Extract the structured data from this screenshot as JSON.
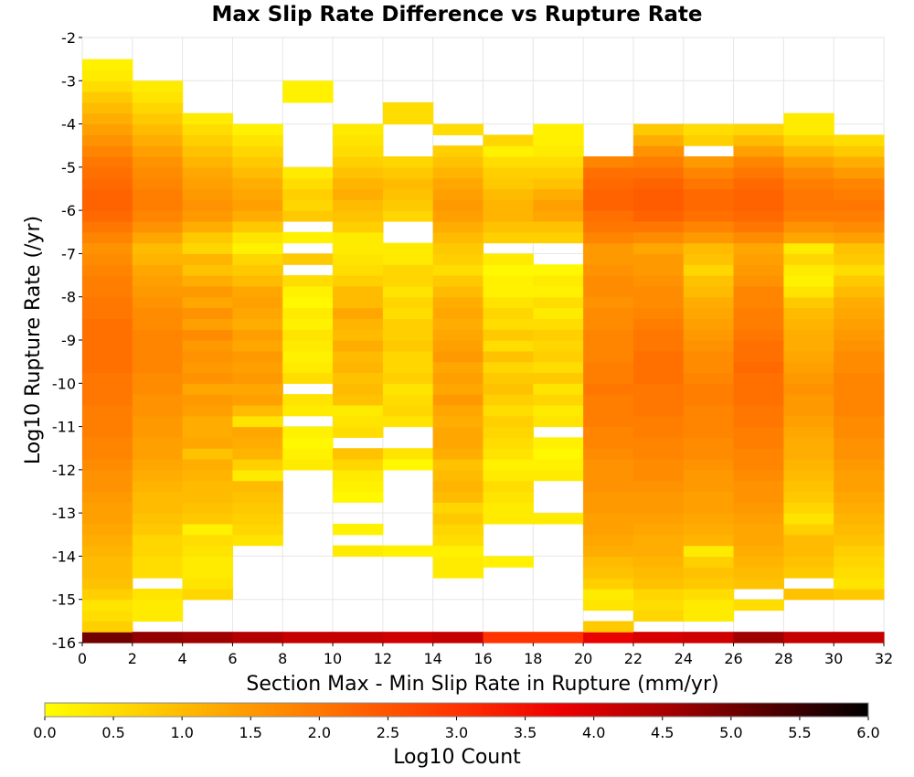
{
  "chart_data": {
    "type": "heatmap",
    "title": "Max Slip Rate Difference vs Rupture Rate",
    "xlabel": "Section Max - Min Slip Rate in Rupture (mm/yr)",
    "ylabel": "Log10 Rupture Rate (/yr)",
    "xlim": [
      0,
      32
    ],
    "ylim": [
      -16,
      -2
    ],
    "x_ticks": [
      "0",
      "2",
      "4",
      "6",
      "8",
      "10",
      "12",
      "14",
      "16",
      "18",
      "20",
      "22",
      "24",
      "26",
      "28",
      "30",
      "32"
    ],
    "y_ticks": [
      "-2",
      "-3",
      "-4",
      "-5",
      "-6",
      "-7",
      "-8",
      "-9",
      "-10",
      "-11",
      "-12",
      "-13",
      "-14",
      "-15",
      "-16"
    ],
    "x_bin_width": 2,
    "y_bin_height": 0.25,
    "y_bin_starts": [
      -16.0,
      -15.75,
      -15.5,
      -15.25,
      -15.0,
      -14.75,
      -14.5,
      -14.25,
      -14.0,
      -13.75,
      -13.5,
      -13.25,
      -13.0,
      -12.75,
      -12.5,
      -12.25,
      -12.0,
      -11.75,
      -11.5,
      -11.25,
      -11.0,
      -10.75,
      -10.5,
      -10.25,
      -10.0,
      -9.75,
      -9.5,
      -9.25,
      -9.0,
      -8.75,
      -8.5,
      -8.25,
      -8.0,
      -7.75,
      -7.5,
      -7.25,
      -7.0,
      -6.75,
      -6.5,
      -6.25,
      -6.0,
      -5.75,
      -5.5,
      -5.25,
      -5.0,
      -4.75,
      -4.5,
      -4.25,
      -4.0,
      -3.75,
      -3.5,
      -3.25,
      -3.0,
      -2.75
    ],
    "grid": true,
    "colorbar": {
      "label": "Log10 Count",
      "range": [
        0,
        6
      ],
      "ticks": [
        "0.0",
        "0.5",
        "1.0",
        "1.5",
        "2.0",
        "2.5",
        "3.0",
        "3.5",
        "4.0",
        "4.5",
        "5.0",
        "5.5",
        "6.0"
      ],
      "colormap": [
        "#ffff00",
        "#ffcc00",
        "#ff9900",
        "#ff6600",
        "#ff3300",
        "#ee0000",
        "#aa0000",
        "#550000",
        "#000000"
      ]
    },
    "columns": [
      {
        "x": 0,
        "values": [
          5.0,
          0.7,
          0.5,
          0.4,
          0.7,
          0.9,
          1.0,
          1.0,
          1.1,
          1.2,
          1.3,
          1.4,
          1.4,
          1.5,
          1.6,
          1.6,
          1.7,
          1.8,
          1.8,
          1.9,
          1.9,
          1.9,
          2.0,
          2.0,
          2.0,
          2.1,
          2.1,
          2.1,
          2.1,
          2.1,
          2.0,
          2.0,
          1.9,
          1.9,
          1.8,
          1.7,
          1.6,
          1.8,
          2.0,
          2.2,
          2.3,
          2.3,
          2.2,
          2.1,
          2.0,
          1.8,
          1.6,
          1.4,
          1.2,
          1.0,
          0.8,
          0.5,
          0.3,
          0.2
        ]
      },
      {
        "x": 2,
        "values": [
          4.7,
          null,
          0.3,
          0.3,
          0.4,
          null,
          0.5,
          0.5,
          0.6,
          0.6,
          0.8,
          0.9,
          1.0,
          1.0,
          1.1,
          1.2,
          1.3,
          1.4,
          1.4,
          1.5,
          1.5,
          1.6,
          1.6,
          1.7,
          1.7,
          1.8,
          1.8,
          1.8,
          1.8,
          1.7,
          1.7,
          1.6,
          1.5,
          1.4,
          1.3,
          1.1,
          1.0,
          1.3,
          1.6,
          1.8,
          1.9,
          1.9,
          1.8,
          1.7,
          1.6,
          1.4,
          1.2,
          1.0,
          0.8,
          0.6,
          0.4,
          0.3,
          null,
          null
        ]
      },
      {
        "x": 4,
        "values": [
          4.6,
          null,
          null,
          null,
          0.6,
          0.4,
          0.3,
          0.3,
          0.4,
          0.5,
          0.2,
          0.8,
          0.9,
          1.0,
          1.0,
          1.1,
          1.2,
          0.9,
          1.3,
          1.2,
          1.2,
          1.4,
          1.5,
          1.3,
          1.6,
          1.5,
          1.6,
          1.5,
          1.7,
          1.4,
          1.6,
          1.3,
          1.5,
          1.2,
          0.9,
          1.1,
          0.6,
          0.8,
          1.2,
          1.5,
          1.6,
          1.5,
          1.4,
          1.3,
          1.1,
          0.9,
          0.7,
          0.5,
          0.3,
          null,
          null,
          null,
          null,
          null
        ]
      },
      {
        "x": 6,
        "values": [
          4.4,
          null,
          null,
          null,
          null,
          null,
          null,
          null,
          null,
          0.4,
          0.6,
          0.7,
          0.8,
          0.9,
          1.0,
          0.3,
          0.7,
          1.1,
          1.2,
          1.3,
          0.4,
          1.0,
          1.4,
          1.3,
          1.5,
          1.4,
          1.5,
          1.3,
          1.4,
          1.2,
          1.3,
          1.4,
          1.3,
          1.0,
          0.8,
          0.6,
          0.2,
          0.4,
          0.8,
          1.2,
          1.4,
          1.3,
          1.2,
          1.0,
          0.8,
          0.6,
          0.4,
          0.2,
          null,
          null,
          null,
          null,
          null,
          null
        ]
      },
      {
        "x": 8,
        "values": [
          4.2,
          null,
          null,
          null,
          null,
          null,
          null,
          null,
          null,
          null,
          null,
          null,
          null,
          null,
          null,
          null,
          0.3,
          0.2,
          0.1,
          0.2,
          null,
          0.3,
          0.4,
          null,
          0.5,
          0.3,
          0.2,
          0.3,
          0.4,
          0.2,
          0.3,
          0.1,
          0.2,
          0.5,
          null,
          0.8,
          null,
          0.2,
          null,
          0.8,
          0.6,
          0.7,
          0.5,
          0.3,
          null,
          null,
          null,
          null,
          null,
          null,
          0.2,
          0.2,
          null,
          null
        ]
      },
      {
        "x": 10,
        "values": [
          4.2,
          null,
          null,
          null,
          null,
          null,
          null,
          null,
          0.3,
          null,
          0.2,
          null,
          null,
          0.1,
          0.2,
          0.3,
          0.6,
          0.9,
          null,
          0.5,
          0.4,
          0.3,
          0.9,
          1.0,
          0.9,
          1.1,
          1.0,
          1.2,
          1.0,
          1.1,
          1.3,
          1.0,
          1.0,
          0.7,
          0.5,
          0.4,
          0.3,
          0.3,
          0.7,
          0.9,
          1.0,
          1.2,
          1.1,
          0.9,
          0.7,
          0.5,
          0.4,
          0.3,
          null,
          null,
          null,
          null,
          null,
          null
        ]
      },
      {
        "x": 12,
        "values": [
          4.1,
          null,
          null,
          null,
          null,
          null,
          null,
          null,
          0.2,
          null,
          null,
          null,
          null,
          null,
          null,
          null,
          0.1,
          0.4,
          null,
          null,
          0.4,
          0.6,
          0.5,
          0.4,
          0.7,
          0.6,
          0.6,
          0.8,
          0.7,
          0.7,
          0.5,
          0.6,
          0.4,
          0.6,
          0.6,
          0.3,
          0.3,
          null,
          null,
          0.6,
          0.8,
          0.9,
          1.0,
          0.8,
          0.6,
          null,
          null,
          null,
          0.5,
          0.5,
          null,
          null,
          null,
          null
        ]
      },
      {
        "x": 14,
        "values": [
          4.2,
          null,
          null,
          null,
          null,
          null,
          0.3,
          0.3,
          0.2,
          0.5,
          0.6,
          0.8,
          0.6,
          1.0,
          1.1,
          1.0,
          0.9,
          1.2,
          1.3,
          1.3,
          1.2,
          1.3,
          1.5,
          1.3,
          1.4,
          1.3,
          1.5,
          1.4,
          1.3,
          1.2,
          1.3,
          1.2,
          1.0,
          0.8,
          0.5,
          0.7,
          0.8,
          1.0,
          1.2,
          1.4,
          1.5,
          1.4,
          1.3,
          1.1,
          0.9,
          0.7,
          null,
          0.5,
          null,
          null,
          null,
          null,
          null,
          null
        ]
      },
      {
        "x": 16,
        "values": [
          3.0,
          null,
          null,
          null,
          null,
          null,
          null,
          0.2,
          null,
          null,
          null,
          0.3,
          0.3,
          0.4,
          0.5,
          0.3,
          0.2,
          0.4,
          0.5,
          0.6,
          0.7,
          0.5,
          0.7,
          0.9,
          0.8,
          0.6,
          0.9,
          0.5,
          0.8,
          0.5,
          0.6,
          0.4,
          0.2,
          0.2,
          0.1,
          0.3,
          null,
          0.7,
          0.9,
          1.1,
          1.1,
          1.0,
          0.8,
          0.7,
          0.5,
          0.2,
          0.6,
          null,
          null,
          null,
          null,
          null,
          null,
          null
        ]
      },
      {
        "x": 18,
        "values": [
          3.0,
          null,
          null,
          null,
          null,
          null,
          null,
          null,
          null,
          null,
          null,
          0.3,
          null,
          null,
          null,
          0.3,
          0.2,
          0.1,
          0.2,
          null,
          0.4,
          0.3,
          0.6,
          0.4,
          0.8,
          0.5,
          0.7,
          0.6,
          0.7,
          0.5,
          0.3,
          0.5,
          0.2,
          0.3,
          0.1,
          null,
          null,
          0.7,
          0.9,
          1.3,
          1.4,
          1.2,
          0.9,
          0.7,
          0.5,
          0.3,
          0.2,
          0.2,
          null,
          null,
          null,
          null,
          null,
          null
        ]
      },
      {
        "x": 20,
        "values": [
          3.8,
          0.8,
          null,
          0.4,
          0.3,
          0.7,
          0.9,
          1.0,
          1.2,
          1.3,
          1.4,
          1.4,
          1.5,
          1.5,
          1.6,
          1.6,
          1.6,
          1.7,
          1.8,
          1.8,
          1.9,
          1.9,
          1.9,
          2.0,
          1.9,
          1.9,
          1.8,
          1.8,
          1.8,
          1.7,
          1.7,
          1.6,
          1.7,
          1.7,
          1.6,
          1.5,
          1.5,
          1.8,
          2.0,
          2.1,
          2.3,
          2.3,
          2.2,
          2.1,
          1.8,
          null,
          null,
          null,
          null,
          null,
          null,
          null,
          null,
          null
        ]
      },
      {
        "x": 22,
        "values": [
          4.0,
          null,
          0.6,
          0.5,
          0.6,
          0.9,
          1.0,
          1.1,
          1.2,
          1.2,
          1.3,
          1.4,
          1.5,
          1.5,
          1.6,
          1.7,
          1.7,
          1.8,
          1.8,
          1.9,
          1.9,
          2.0,
          2.0,
          2.0,
          2.1,
          2.1,
          2.1,
          2.0,
          2.0,
          1.9,
          1.8,
          1.7,
          1.7,
          1.6,
          1.5,
          1.5,
          1.3,
          1.7,
          2.0,
          2.3,
          2.4,
          2.4,
          2.3,
          2.1,
          1.9,
          1.6,
          1.2,
          0.8,
          null,
          null,
          null,
          null,
          null,
          null
        ]
      },
      {
        "x": 24,
        "values": [
          4.1,
          null,
          0.3,
          0.3,
          0.5,
          0.8,
          0.9,
          0.7,
          0.3,
          1.1,
          1.2,
          1.3,
          1.4,
          1.4,
          1.5,
          1.5,
          1.6,
          1.7,
          1.7,
          1.8,
          1.8,
          1.8,
          1.9,
          1.9,
          1.8,
          1.7,
          1.7,
          1.6,
          1.5,
          1.4,
          1.3,
          1.2,
          1.0,
          0.9,
          0.6,
          0.9,
          1.0,
          1.5,
          1.8,
          2.1,
          2.2,
          2.2,
          2.0,
          1.8,
          1.5,
          null,
          0.7,
          0.5,
          null,
          null,
          null,
          null,
          null,
          null
        ]
      },
      {
        "x": 26,
        "values": [
          4.6,
          null,
          null,
          0.5,
          null,
          0.9,
          1.0,
          1.1,
          1.2,
          1.3,
          1.3,
          1.4,
          1.5,
          1.6,
          1.6,
          1.7,
          1.8,
          1.8,
          1.9,
          1.9,
          2.0,
          2.0,
          2.1,
          2.1,
          2.1,
          2.2,
          2.1,
          2.1,
          2.0,
          1.9,
          1.9,
          1.8,
          1.8,
          1.6,
          1.5,
          1.4,
          1.3,
          1.7,
          2.0,
          2.2,
          2.3,
          2.3,
          2.2,
          2.0,
          1.8,
          1.4,
          1.0,
          0.6,
          null,
          null,
          null,
          null,
          null,
          null
        ]
      },
      {
        "x": 28,
        "values": [
          4.2,
          null,
          null,
          null,
          0.9,
          null,
          0.8,
          0.9,
          1.0,
          1.0,
          0.7,
          0.4,
          0.6,
          0.8,
          0.9,
          1.0,
          1.1,
          1.2,
          1.2,
          1.3,
          1.4,
          1.5,
          1.5,
          1.6,
          1.5,
          1.4,
          1.3,
          1.2,
          1.2,
          1.1,
          1.0,
          0.8,
          0.4,
          0.2,
          0.3,
          0.6,
          0.3,
          1.3,
          1.6,
          1.9,
          2.0,
          2.0,
          1.9,
          1.7,
          1.4,
          1.0,
          0.6,
          0.3,
          0.3,
          null,
          null,
          null,
          null,
          null
        ]
      },
      {
        "x": 30,
        "values": [
          4.2,
          null,
          null,
          null,
          0.8,
          0.4,
          0.5,
          0.6,
          0.7,
          0.9,
          1.0,
          1.1,
          1.2,
          1.3,
          1.4,
          1.4,
          1.5,
          1.6,
          1.6,
          1.7,
          1.7,
          1.8,
          1.8,
          1.8,
          1.8,
          1.7,
          1.7,
          1.6,
          1.5,
          1.4,
          1.3,
          1.2,
          1.0,
          0.8,
          0.5,
          0.8,
          0.9,
          1.4,
          1.7,
          1.9,
          2.0,
          1.9,
          1.8,
          1.5,
          1.2,
          0.8,
          0.5,
          null,
          null,
          null,
          null,
          null,
          null,
          null
        ]
      }
    ]
  }
}
